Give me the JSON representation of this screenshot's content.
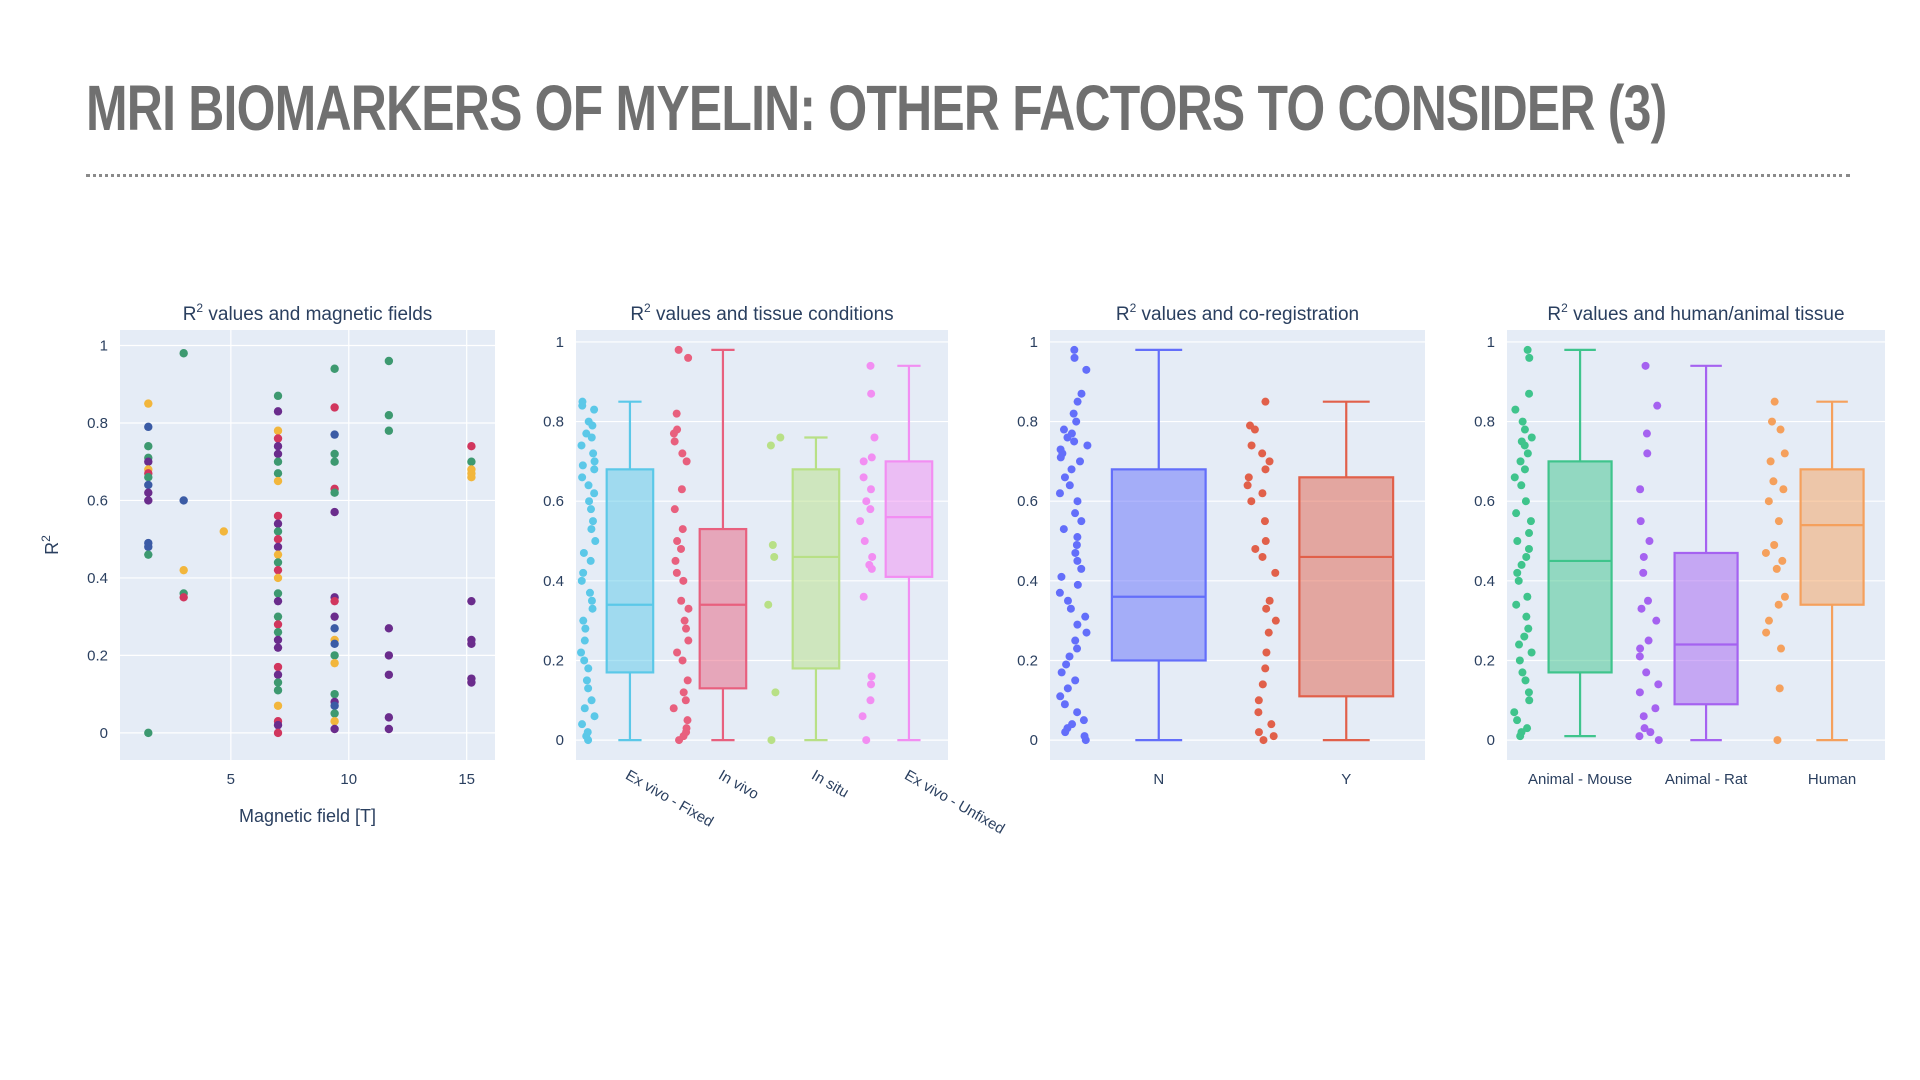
{
  "slide": {
    "title": "MRI BIOMARKERS OF MYELIN: OTHER FACTORS TO CONSIDER (3)"
  },
  "colors": {
    "plot_bg": "#e5ecf6",
    "grid": "#ffffff",
    "text": "#2a3f5f",
    "scatter_palette": [
      "#3b5ba5",
      "#3d9970",
      "#f2b63c",
      "#d1365e",
      "#6a2c8c"
    ]
  },
  "chart_data": [
    {
      "type": "scatter",
      "title": "R² values and magnetic fields",
      "xlabel": "Magnetic field [T]",
      "ylabel": "R²",
      "xlim": [
        0.3,
        16.2
      ],
      "ylim": [
        -0.07,
        1.04
      ],
      "xticks": [
        5,
        10,
        15
      ],
      "yticks": [
        0,
        0.2,
        0.4,
        0.6,
        0.8,
        1
      ],
      "grid": true,
      "points": [
        {
          "x": 1.5,
          "y": 0.85,
          "c": 2
        },
        {
          "x": 1.5,
          "y": 0.79,
          "c": 0
        },
        {
          "x": 1.5,
          "y": 0.74,
          "c": 1
        },
        {
          "x": 1.5,
          "y": 0.71,
          "c": 1
        },
        {
          "x": 1.5,
          "y": 0.7,
          "c": 4
        },
        {
          "x": 1.5,
          "y": 0.68,
          "c": 2
        },
        {
          "x": 1.5,
          "y": 0.67,
          "c": 3
        },
        {
          "x": 1.5,
          "y": 0.66,
          "c": 1
        },
        {
          "x": 1.5,
          "y": 0.64,
          "c": 0
        },
        {
          "x": 1.5,
          "y": 0.62,
          "c": 4
        },
        {
          "x": 1.5,
          "y": 0.6,
          "c": 4
        },
        {
          "x": 1.5,
          "y": 0.49,
          "c": 0
        },
        {
          "x": 1.5,
          "y": 0.48,
          "c": 0
        },
        {
          "x": 1.5,
          "y": 0.46,
          "c": 1
        },
        {
          "x": 1.5,
          "y": 0.0,
          "c": 1
        },
        {
          "x": 3,
          "y": 0.98,
          "c": 1
        },
        {
          "x": 3,
          "y": 0.6,
          "c": 0
        },
        {
          "x": 3,
          "y": 0.42,
          "c": 2
        },
        {
          "x": 3,
          "y": 0.36,
          "c": 1
        },
        {
          "x": 3,
          "y": 0.35,
          "c": 3
        },
        {
          "x": 4.7,
          "y": 0.52,
          "c": 2
        },
        {
          "x": 7,
          "y": 0.87,
          "c": 1
        },
        {
          "x": 7,
          "y": 0.83,
          "c": 4
        },
        {
          "x": 7,
          "y": 0.78,
          "c": 2
        },
        {
          "x": 7,
          "y": 0.76,
          "c": 3
        },
        {
          "x": 7,
          "y": 0.74,
          "c": 4
        },
        {
          "x": 7,
          "y": 0.72,
          "c": 4
        },
        {
          "x": 7,
          "y": 0.7,
          "c": 1
        },
        {
          "x": 7,
          "y": 0.67,
          "c": 1
        },
        {
          "x": 7,
          "y": 0.65,
          "c": 2
        },
        {
          "x": 7,
          "y": 0.56,
          "c": 3
        },
        {
          "x": 7,
          "y": 0.54,
          "c": 4
        },
        {
          "x": 7,
          "y": 0.52,
          "c": 1
        },
        {
          "x": 7,
          "y": 0.5,
          "c": 3
        },
        {
          "x": 7,
          "y": 0.48,
          "c": 4
        },
        {
          "x": 7,
          "y": 0.46,
          "c": 2
        },
        {
          "x": 7,
          "y": 0.44,
          "c": 1
        },
        {
          "x": 7,
          "y": 0.42,
          "c": 3
        },
        {
          "x": 7,
          "y": 0.4,
          "c": 2
        },
        {
          "x": 7,
          "y": 0.36,
          "c": 1
        },
        {
          "x": 7,
          "y": 0.34,
          "c": 4
        },
        {
          "x": 7,
          "y": 0.3,
          "c": 1
        },
        {
          "x": 7,
          "y": 0.28,
          "c": 3
        },
        {
          "x": 7,
          "y": 0.26,
          "c": 1
        },
        {
          "x": 7,
          "y": 0.24,
          "c": 4
        },
        {
          "x": 7,
          "y": 0.22,
          "c": 4
        },
        {
          "x": 7,
          "y": 0.17,
          "c": 3
        },
        {
          "x": 7,
          "y": 0.15,
          "c": 4
        },
        {
          "x": 7,
          "y": 0.13,
          "c": 1
        },
        {
          "x": 7,
          "y": 0.11,
          "c": 1
        },
        {
          "x": 7,
          "y": 0.07,
          "c": 2
        },
        {
          "x": 7,
          "y": 0.03,
          "c": 3
        },
        {
          "x": 7,
          "y": 0.02,
          "c": 4
        },
        {
          "x": 7,
          "y": 0.0,
          "c": 3
        },
        {
          "x": 9.4,
          "y": 0.94,
          "c": 1
        },
        {
          "x": 9.4,
          "y": 0.84,
          "c": 3
        },
        {
          "x": 9.4,
          "y": 0.77,
          "c": 0
        },
        {
          "x": 9.4,
          "y": 0.72,
          "c": 1
        },
        {
          "x": 9.4,
          "y": 0.7,
          "c": 1
        },
        {
          "x": 9.4,
          "y": 0.63,
          "c": 3
        },
        {
          "x": 9.4,
          "y": 0.62,
          "c": 1
        },
        {
          "x": 9.4,
          "y": 0.57,
          "c": 4
        },
        {
          "x": 9.4,
          "y": 0.35,
          "c": 4
        },
        {
          "x": 9.4,
          "y": 0.34,
          "c": 3
        },
        {
          "x": 9.4,
          "y": 0.3,
          "c": 4
        },
        {
          "x": 9.4,
          "y": 0.27,
          "c": 0
        },
        {
          "x": 9.4,
          "y": 0.24,
          "c": 2
        },
        {
          "x": 9.4,
          "y": 0.23,
          "c": 0
        },
        {
          "x": 9.4,
          "y": 0.2,
          "c": 1
        },
        {
          "x": 9.4,
          "y": 0.18,
          "c": 2
        },
        {
          "x": 9.4,
          "y": 0.1,
          "c": 1
        },
        {
          "x": 9.4,
          "y": 0.08,
          "c": 4
        },
        {
          "x": 9.4,
          "y": 0.07,
          "c": 0
        },
        {
          "x": 9.4,
          "y": 0.05,
          "c": 1
        },
        {
          "x": 9.4,
          "y": 0.03,
          "c": 2
        },
        {
          "x": 9.4,
          "y": 0.01,
          "c": 4
        },
        {
          "x": 11.7,
          "y": 0.96,
          "c": 1
        },
        {
          "x": 11.7,
          "y": 0.82,
          "c": 1
        },
        {
          "x": 11.7,
          "y": 0.78,
          "c": 1
        },
        {
          "x": 11.7,
          "y": 0.27,
          "c": 4
        },
        {
          "x": 11.7,
          "y": 0.2,
          "c": 4
        },
        {
          "x": 11.7,
          "y": 0.15,
          "c": 4
        },
        {
          "x": 11.7,
          "y": 0.04,
          "c": 4
        },
        {
          "x": 11.7,
          "y": 0.01,
          "c": 4
        },
        {
          "x": 15.2,
          "y": 0.74,
          "c": 3
        },
        {
          "x": 15.2,
          "y": 0.7,
          "c": 1
        },
        {
          "x": 15.2,
          "y": 0.68,
          "c": 2
        },
        {
          "x": 15.2,
          "y": 0.67,
          "c": 2
        },
        {
          "x": 15.2,
          "y": 0.66,
          "c": 2
        },
        {
          "x": 15.2,
          "y": 0.34,
          "c": 4
        },
        {
          "x": 15.2,
          "y": 0.24,
          "c": 4
        },
        {
          "x": 15.2,
          "y": 0.23,
          "c": 4
        },
        {
          "x": 15.2,
          "y": 0.14,
          "c": 4
        },
        {
          "x": 15.2,
          "y": 0.13,
          "c": 4
        }
      ]
    },
    {
      "type": "box",
      "title": "R² values and tissue conditions",
      "ylim": [
        -0.05,
        1.03
      ],
      "yticks": [
        0,
        0.2,
        0.4,
        0.6,
        0.8,
        1
      ],
      "tick_rotation": 30,
      "grid": true,
      "series": [
        {
          "name": "Ex vivo - Fixed",
          "color": "#5bc8e8",
          "q1": 0.17,
          "median": 0.34,
          "q3": 0.68,
          "lower": 0.0,
          "upper": 0.85,
          "points": [
            0.85,
            0.84,
            0.83,
            0.8,
            0.79,
            0.77,
            0.76,
            0.74,
            0.72,
            0.7,
            0.69,
            0.68,
            0.66,
            0.64,
            0.62,
            0.6,
            0.58,
            0.55,
            0.53,
            0.5,
            0.47,
            0.45,
            0.42,
            0.4,
            0.37,
            0.35,
            0.33,
            0.3,
            0.28,
            0.25,
            0.22,
            0.2,
            0.18,
            0.15,
            0.13,
            0.1,
            0.08,
            0.06,
            0.04,
            0.02,
            0.01,
            0.0
          ]
        },
        {
          "name": "In vivo",
          "color": "#e8607e",
          "q1": 0.13,
          "median": 0.34,
          "q3": 0.53,
          "lower": 0.0,
          "upper": 0.98,
          "points": [
            0.98,
            0.96,
            0.82,
            0.78,
            0.77,
            0.75,
            0.72,
            0.7,
            0.63,
            0.58,
            0.53,
            0.5,
            0.48,
            0.45,
            0.42,
            0.4,
            0.35,
            0.33,
            0.3,
            0.28,
            0.25,
            0.22,
            0.2,
            0.15,
            0.12,
            0.1,
            0.08,
            0.05,
            0.03,
            0.02,
            0.01,
            0.0
          ]
        },
        {
          "name": "In situ",
          "color": "#b8e086",
          "q1": 0.18,
          "median": 0.46,
          "q3": 0.68,
          "lower": 0.0,
          "upper": 0.76,
          "points": [
            0.76,
            0.74,
            0.49,
            0.46,
            0.34,
            0.12,
            0.0
          ]
        },
        {
          "name": "Ex vivo - Unfixed",
          "color": "#f28ef2",
          "q1": 0.41,
          "median": 0.56,
          "q3": 0.7,
          "lower": 0.0,
          "upper": 0.94,
          "points": [
            0.94,
            0.87,
            0.76,
            0.71,
            0.7,
            0.66,
            0.63,
            0.6,
            0.58,
            0.55,
            0.5,
            0.46,
            0.44,
            0.43,
            0.36,
            0.16,
            0.14,
            0.1,
            0.06,
            0.0
          ]
        }
      ]
    },
    {
      "type": "box",
      "title": "R² values and co-registration",
      "ylim": [
        -0.05,
        1.03
      ],
      "yticks": [
        0,
        0.2,
        0.4,
        0.6,
        0.8,
        1
      ],
      "tick_rotation": 0,
      "grid": true,
      "series": [
        {
          "name": "N",
          "color": "#636efa",
          "q1": 0.2,
          "median": 0.36,
          "q3": 0.68,
          "lower": 0.0,
          "upper": 0.98,
          "points": [
            0.98,
            0.96,
            0.93,
            0.87,
            0.85,
            0.82,
            0.8,
            0.78,
            0.77,
            0.76,
            0.75,
            0.74,
            0.73,
            0.72,
            0.71,
            0.7,
            0.68,
            0.66,
            0.64,
            0.62,
            0.6,
            0.57,
            0.55,
            0.53,
            0.51,
            0.49,
            0.47,
            0.45,
            0.43,
            0.41,
            0.39,
            0.37,
            0.35,
            0.33,
            0.31,
            0.29,
            0.27,
            0.25,
            0.23,
            0.21,
            0.19,
            0.17,
            0.15,
            0.13,
            0.11,
            0.09,
            0.07,
            0.05,
            0.04,
            0.03,
            0.02,
            0.01,
            0.0
          ]
        },
        {
          "name": "Y",
          "color": "#e1604a",
          "q1": 0.11,
          "median": 0.46,
          "q3": 0.66,
          "lower": 0.0,
          "upper": 0.85,
          "points": [
            0.85,
            0.79,
            0.78,
            0.74,
            0.72,
            0.7,
            0.68,
            0.66,
            0.64,
            0.62,
            0.6,
            0.55,
            0.5,
            0.48,
            0.46,
            0.42,
            0.35,
            0.33,
            0.3,
            0.27,
            0.22,
            0.18,
            0.14,
            0.1,
            0.07,
            0.04,
            0.02,
            0.01,
            0.0
          ]
        }
      ]
    },
    {
      "type": "box",
      "title": "R² values and human/animal tissue",
      "ylim": [
        -0.05,
        1.03
      ],
      "yticks": [
        0,
        0.2,
        0.4,
        0.6,
        0.8,
        1
      ],
      "tick_rotation": 0,
      "grid": true,
      "series": [
        {
          "name": "Animal - Mouse",
          "color": "#3fc48c",
          "q1": 0.17,
          "median": 0.45,
          "q3": 0.7,
          "lower": 0.01,
          "upper": 0.98,
          "points": [
            0.98,
            0.96,
            0.87,
            0.83,
            0.8,
            0.78,
            0.76,
            0.75,
            0.74,
            0.72,
            0.7,
            0.68,
            0.66,
            0.64,
            0.6,
            0.57,
            0.55,
            0.52,
            0.5,
            0.48,
            0.46,
            0.44,
            0.42,
            0.4,
            0.36,
            0.34,
            0.31,
            0.28,
            0.26,
            0.24,
            0.22,
            0.2,
            0.17,
            0.15,
            0.12,
            0.1,
            0.07,
            0.05,
            0.03,
            0.02,
            0.01
          ]
        },
        {
          "name": "Animal - Rat",
          "color": "#a562f0",
          "q1": 0.09,
          "median": 0.24,
          "q3": 0.47,
          "lower": 0.0,
          "upper": 0.94,
          "points": [
            0.94,
            0.84,
            0.77,
            0.72,
            0.63,
            0.55,
            0.5,
            0.46,
            0.42,
            0.35,
            0.33,
            0.3,
            0.25,
            0.23,
            0.21,
            0.17,
            0.14,
            0.12,
            0.08,
            0.06,
            0.03,
            0.02,
            0.01,
            0.0
          ]
        },
        {
          "name": "Human",
          "color": "#f5a05c",
          "q1": 0.34,
          "median": 0.54,
          "q3": 0.68,
          "lower": 0.0,
          "upper": 0.85,
          "points": [
            0.85,
            0.8,
            0.78,
            0.72,
            0.7,
            0.65,
            0.63,
            0.6,
            0.55,
            0.49,
            0.47,
            0.45,
            0.43,
            0.36,
            0.34,
            0.3,
            0.27,
            0.23,
            0.13,
            0.0
          ]
        }
      ]
    }
  ]
}
